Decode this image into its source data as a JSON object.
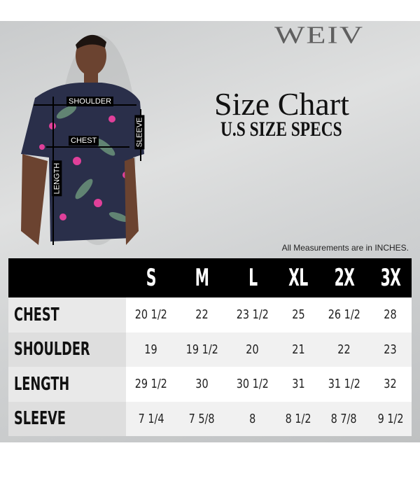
{
  "brand": "WEIV",
  "title": "Size Chart",
  "subtitle": "U.S SIZE SPECS",
  "note": "All Measurements are in INCHES.",
  "figure_labels": {
    "shoulder": "SHOULDER",
    "sleeve": "SLEEVE",
    "chest": "CHEST",
    "length": "LENGTH"
  },
  "colors": {
    "header_bg": "#000000",
    "shirt": "#2a2f4a",
    "accent": "#e0409a"
  },
  "table": {
    "sizes": [
      "S",
      "M",
      "L",
      "XL",
      "2X",
      "3X"
    ],
    "rows": [
      {
        "label": "CHEST",
        "values": [
          "20 1/2",
          "22",
          "23 1/2",
          "25",
          "26 1/2",
          "28"
        ]
      },
      {
        "label": "SHOULDER",
        "values": [
          "19",
          "19 1/2",
          "20",
          "21",
          "22",
          "23"
        ]
      },
      {
        "label": "LENGTH",
        "values": [
          "29 1/2",
          "30",
          "30 1/2",
          "31",
          "31 1/2",
          "32"
        ]
      },
      {
        "label": "SLEEVE",
        "values": [
          "7 1/4",
          "7 5/8",
          "8",
          "8 1/2",
          "8 7/8",
          "9 1/2"
        ]
      }
    ]
  }
}
